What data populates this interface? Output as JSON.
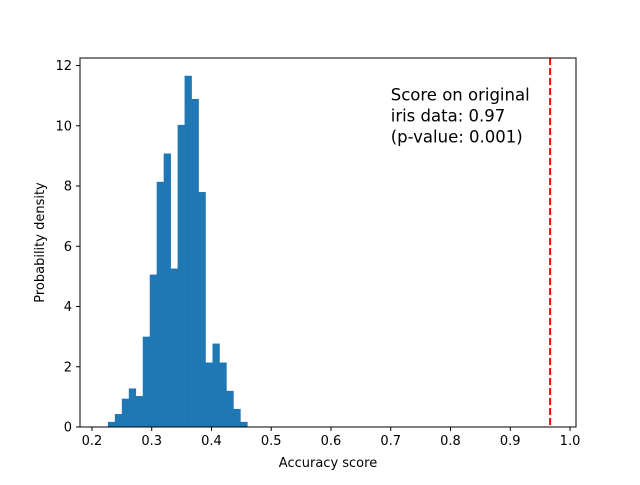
{
  "chart_data": {
    "type": "bar",
    "subtype": "histogram",
    "xlabel": "Accuracy score",
    "ylabel": "Probability density",
    "xlim": [
      0.18,
      1.01
    ],
    "ylim": [
      0,
      12.25
    ],
    "xticks": [
      0.2,
      0.3,
      0.4,
      0.5,
      0.6,
      0.7,
      0.8,
      0.9,
      1.0
    ],
    "xtick_labels": [
      "0.2",
      "0.3",
      "0.4",
      "0.5",
      "0.6",
      "0.7",
      "0.8",
      "0.9",
      "1.0"
    ],
    "yticks": [
      0,
      2,
      4,
      6,
      8,
      10,
      12
    ],
    "ytick_labels": [
      "0",
      "2",
      "4",
      "6",
      "8",
      "10",
      "12"
    ],
    "grid": false,
    "bar_color": "#1f77b4",
    "bin_width": 0.01167,
    "bins": [
      {
        "x0": 0.2267,
        "density": 0.17
      },
      {
        "x0": 0.2383,
        "density": 0.43
      },
      {
        "x0": 0.25,
        "density": 0.94
      },
      {
        "x0": 0.2617,
        "density": 1.28
      },
      {
        "x0": 0.2733,
        "density": 1.03
      },
      {
        "x0": 0.285,
        "density": 3.0
      },
      {
        "x0": 0.2967,
        "density": 5.06
      },
      {
        "x0": 0.3083,
        "density": 8.14
      },
      {
        "x0": 0.32,
        "density": 9.08
      },
      {
        "x0": 0.3317,
        "density": 5.26
      },
      {
        "x0": 0.3433,
        "density": 10.03
      },
      {
        "x0": 0.355,
        "density": 11.66
      },
      {
        "x0": 0.3667,
        "density": 10.89
      },
      {
        "x0": 0.3783,
        "density": 7.8
      },
      {
        "x0": 0.39,
        "density": 2.14
      },
      {
        "x0": 0.4017,
        "density": 2.77
      },
      {
        "x0": 0.4133,
        "density": 2.14
      },
      {
        "x0": 0.425,
        "density": 1.2
      },
      {
        "x0": 0.4367,
        "density": 0.6
      },
      {
        "x0": 0.4483,
        "density": 0.17
      }
    ],
    "reference_line": {
      "x": 0.9667,
      "color": "#ff0000",
      "style": "dashed"
    },
    "annotation": {
      "lines": [
        "Score on original",
        "iris data: 0.97",
        "(p-value: 0.001)"
      ],
      "x": 0.7,
      "y": 11.0
    }
  }
}
